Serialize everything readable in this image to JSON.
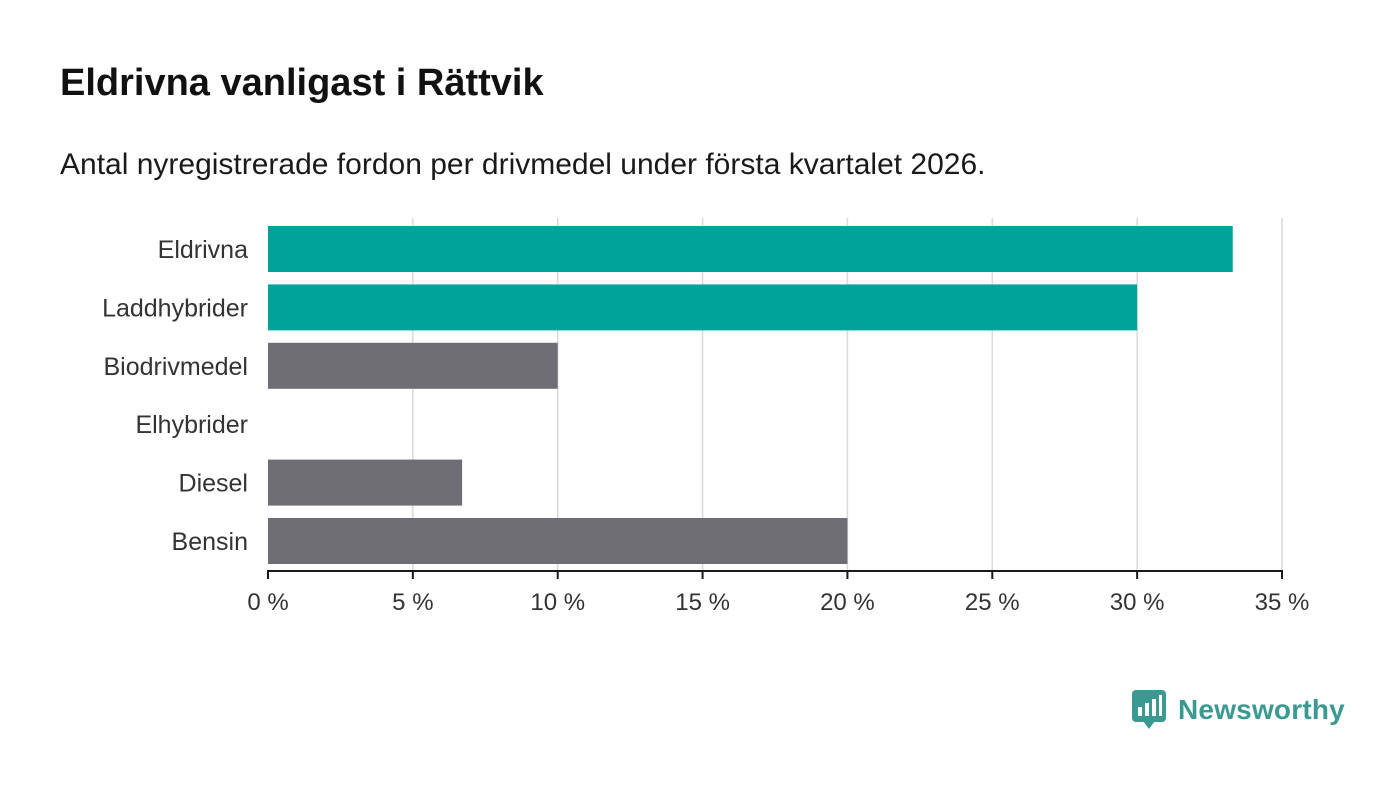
{
  "title": "Eldrivna vanligast i Rättvik",
  "subtitle": "Antal nyregistrerade fordon per drivmedel under första kvartalet 2026.",
  "brand": {
    "name": "Newsworthy",
    "icon": "newsworthy-logo-icon"
  },
  "chart_data": {
    "type": "bar",
    "orientation": "horizontal",
    "categories": [
      "Eldrivna",
      "Laddhybrider",
      "Biodrivmedel",
      "Elhybrider",
      "Diesel",
      "Bensin"
    ],
    "values": [
      33.3,
      30.0,
      10.0,
      0,
      6.7,
      20.0
    ],
    "highlighted": [
      true,
      true,
      false,
      false,
      false,
      false
    ],
    "xlim": [
      0,
      35
    ],
    "xticks": [
      0,
      5,
      10,
      15,
      20,
      25,
      30,
      35
    ],
    "xtick_labels": [
      "0 %",
      "5 %",
      "10 %",
      "15 %",
      "20 %",
      "25 %",
      "30 %",
      "35 %"
    ],
    "xlabel": "",
    "ylabel": "",
    "grid": "vertical",
    "colors": {
      "highlight": "#00a39a",
      "default": "#6e6d73",
      "grid": "#d9d9d9",
      "axis": "#1a1a1a"
    }
  }
}
